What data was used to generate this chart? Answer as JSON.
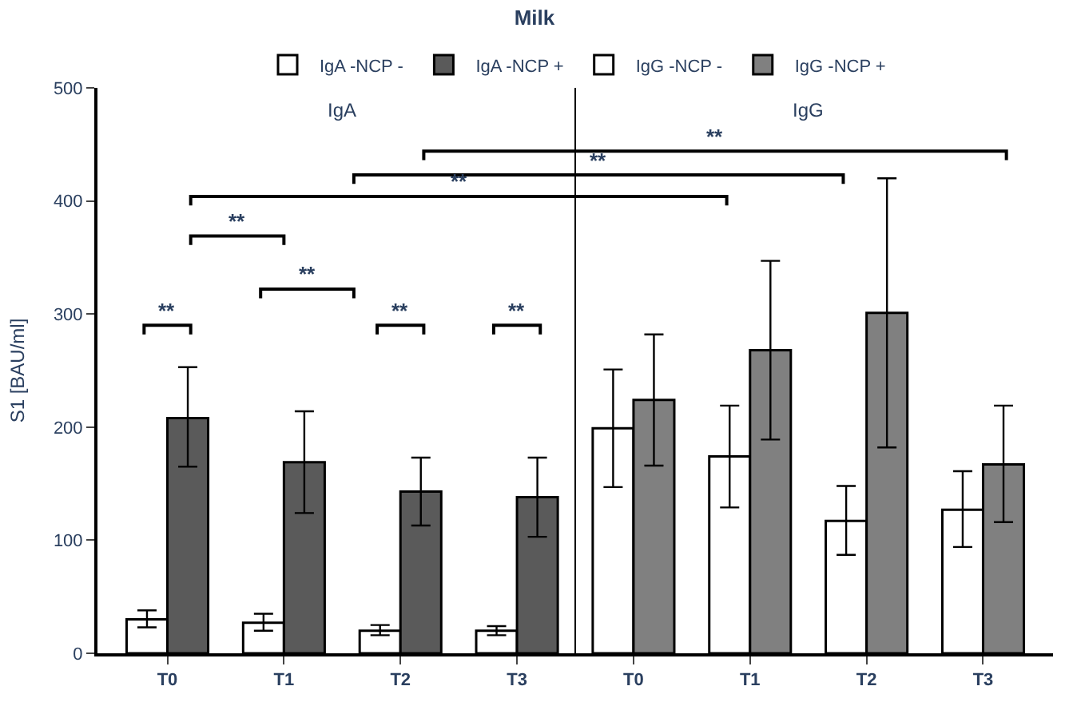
{
  "chart_data": {
    "type": "bar",
    "title": "Milk",
    "ylabel": "S1 [BAU/ml]",
    "categories": [
      "T0",
      "T1",
      "T2",
      "T3",
      "T0",
      "T1",
      "T2",
      "T3"
    ],
    "series": [
      {
        "name": "IgA -NCP -",
        "color": "#ffffff",
        "values": [
          30,
          27,
          20,
          20,
          null,
          null,
          null,
          null
        ],
        "errors": [
          [
            23,
            38
          ],
          [
            20,
            35
          ],
          [
            16,
            25
          ],
          [
            16,
            24
          ],
          null,
          null,
          null,
          null
        ]
      },
      {
        "name": "IgA -NCP +",
        "color": "#5a5a5a",
        "values": [
          208,
          169,
          143,
          138,
          null,
          null,
          null,
          null
        ],
        "errors": [
          [
            165,
            253
          ],
          [
            124,
            214
          ],
          [
            113,
            173
          ],
          [
            103,
            173
          ],
          null,
          null,
          null,
          null
        ]
      },
      {
        "name": "IgG -NCP -",
        "color": "#ffffff",
        "values": [
          null,
          null,
          null,
          null,
          199,
          174,
          117,
          127
        ],
        "errors": [
          null,
          null,
          null,
          null,
          [
            147,
            251
          ],
          [
            129,
            219
          ],
          [
            87,
            148
          ],
          [
            94,
            161
          ]
        ]
      },
      {
        "name": "IgG -NCP +",
        "color": "#808080",
        "values": [
          null,
          null,
          null,
          null,
          224,
          268,
          301,
          167
        ],
        "errors": [
          null,
          null,
          null,
          null,
          [
            166,
            282
          ],
          [
            189,
            347
          ],
          [
            182,
            420
          ],
          [
            116,
            219
          ]
        ]
      }
    ],
    "ylim": [
      0,
      500
    ],
    "yticks": [
      0,
      100,
      200,
      300,
      400,
      500
    ],
    "annotations": [
      "IgA",
      "IgG",
      "**",
      "**",
      "**",
      "**",
      "**",
      "**",
      "**",
      "**"
    ],
    "legend": "top"
  }
}
